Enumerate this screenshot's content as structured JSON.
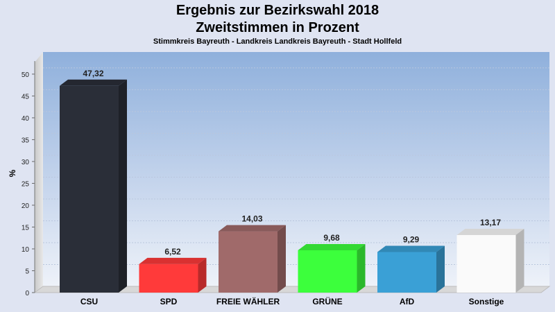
{
  "title": "Ergebnis zur Bezirkswahl 2018",
  "subtitle": "Zweitstimmen in Prozent",
  "location": "Stimmkreis Bayreuth - Landkreis Landkreis Bayreuth - Stadt Hollfeld",
  "chart_data": {
    "type": "bar",
    "categories": [
      "CSU",
      "SPD",
      "FREIE WÄHLER",
      "GRÜNE",
      "AfD",
      "Sonstige"
    ],
    "values": [
      47.32,
      6.52,
      14.03,
      9.68,
      9.29,
      13.17
    ],
    "value_labels": [
      "47,32",
      "6,52",
      "14,03",
      "9,68",
      "9,29",
      "13,17"
    ],
    "colors": [
      "#2a2e38",
      "#ff3a3a",
      "#a06a6a",
      "#3cff3c",
      "#3aa0d6",
      "#fafafa"
    ],
    "ylabel": "%",
    "ylim": [
      0,
      53
    ],
    "yticks": [
      0,
      5,
      10,
      15,
      20,
      25,
      30,
      35,
      40,
      45,
      50
    ],
    "grid": true,
    "legend": "none"
  }
}
